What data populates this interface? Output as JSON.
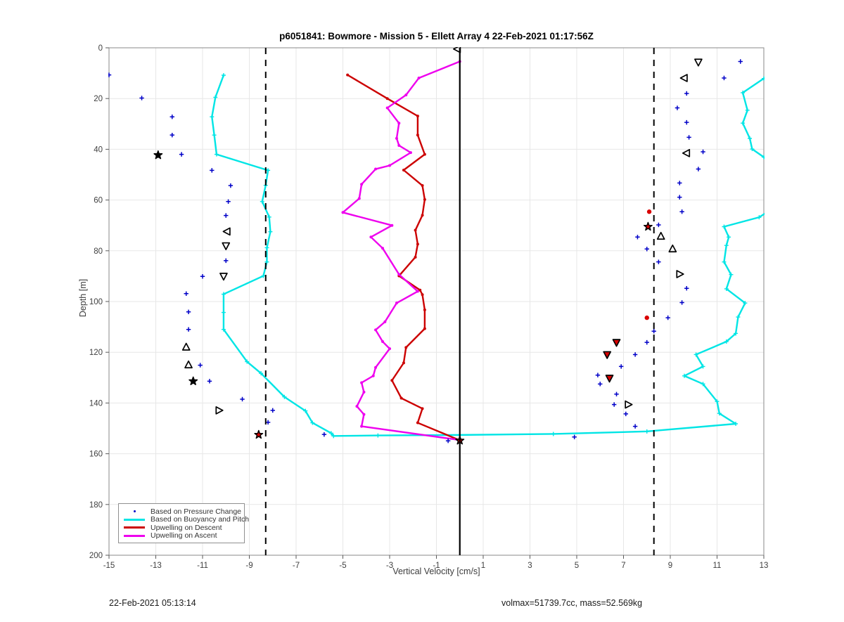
{
  "title": "p6051841: Bowmore - Mission 5 - Ellett Array 4 22-Feb-2021 01:17:56Z",
  "footer": {
    "timestamp": "22-Feb-2021 05:13:14",
    "info": "volmax=51739.7cc, mass=52.569kg"
  },
  "colors": {
    "pressure": "#0000C8",
    "buoyancy": "#00E5E5",
    "descent": "#CC0000",
    "ascent": "#EE00EE",
    "grid": "#E7E7E7",
    "axis_box": "#8A8A8A",
    "tick": "#5A5A5A",
    "tick_label": "#3F3F3F",
    "reference": "#000000",
    "red_dot": "#D90000",
    "marker_stroke": "#000000"
  },
  "axes": {
    "xlabel": "Vertical Velocity [cm/s]",
    "ylabel": "Depth [m]",
    "xlim": [
      -15,
      13
    ],
    "ylim": [
      0,
      200
    ],
    "y_inverted": true,
    "xticks": [
      -15,
      -13,
      -11,
      -9,
      -7,
      -5,
      -3,
      -1,
      1,
      3,
      5,
      7,
      9,
      11,
      13
    ],
    "yticks": [
      0,
      20,
      40,
      60,
      80,
      100,
      120,
      140,
      160,
      180,
      200
    ]
  },
  "chart_data": {
    "type": "line",
    "title": "p6051841: Bowmore - Mission 5 - Ellett Array 4 22-Feb-2021 01:17:56Z",
    "xlabel": "Vertical Velocity [cm/s]",
    "ylabel": "Depth [m]",
    "xlim": [
      -15,
      13
    ],
    "ylim": [
      0,
      200
    ],
    "y_inverted": true,
    "grid": true,
    "legend_position": "southwest",
    "zero_line": 0,
    "dashed_lines": [
      -8.3,
      8.3
    ],
    "series": [
      {
        "name": "Based on Pressure Change",
        "style": "scatter-plus",
        "color": "#0000C8",
        "points": [
          [
            -15.0,
            10.7
          ],
          [
            -13.6,
            19.8
          ],
          [
            -12.3,
            27.2
          ],
          [
            -12.3,
            34.4
          ],
          [
            -11.9,
            42.0
          ],
          [
            -10.6,
            48.3
          ],
          [
            -9.8,
            54.3
          ],
          [
            -9.9,
            60.6
          ],
          [
            -10.0,
            66.1
          ],
          [
            -10.0,
            83.9
          ],
          [
            -11.0,
            90.1
          ],
          [
            -11.7,
            96.9
          ],
          [
            -11.6,
            104.1
          ],
          [
            -11.6,
            111.0
          ],
          [
            -11.1,
            125.1
          ],
          [
            -10.7,
            131.4
          ],
          [
            -9.3,
            138.5
          ],
          [
            -8.0,
            142.9
          ],
          [
            -8.2,
            147.6
          ],
          [
            -5.8,
            152.4
          ],
          [
            -0.5,
            154.9
          ],
          [
            4.9,
            153.4
          ],
          [
            7.5,
            149.2
          ],
          [
            7.1,
            144.3
          ],
          [
            6.6,
            140.6
          ],
          [
            6.7,
            136.5
          ],
          [
            6.0,
            132.5
          ],
          [
            5.9,
            129.0
          ],
          [
            6.9,
            125.6
          ],
          [
            7.5,
            120.9
          ],
          [
            8.0,
            116.1
          ],
          [
            8.3,
            111.7
          ],
          [
            8.9,
            106.4
          ],
          [
            9.5,
            100.4
          ],
          [
            9.7,
            94.8
          ],
          [
            8.5,
            84.4
          ],
          [
            8.0,
            79.3
          ],
          [
            7.6,
            74.6
          ],
          [
            8.5,
            69.8
          ],
          [
            9.5,
            64.6
          ],
          [
            9.4,
            58.9
          ],
          [
            9.4,
            53.3
          ],
          [
            10.2,
            47.8
          ],
          [
            10.4,
            41.0
          ],
          [
            9.8,
            35.3
          ],
          [
            9.7,
            29.4
          ],
          [
            9.3,
            23.7
          ],
          [
            9.7,
            18.0
          ],
          [
            11.3,
            11.9
          ],
          [
            12.0,
            5.4
          ]
        ]
      },
      {
        "name": "Based on Buoyancy and Pitch",
        "style": "line-plus",
        "color": "#00E5E5",
        "points": [
          [
            -10.1,
            10.8
          ],
          [
            -10.45,
            19.5
          ],
          [
            -10.6,
            27.2
          ],
          [
            -10.5,
            34.4
          ],
          [
            -10.4,
            42.0
          ],
          [
            -8.2,
            48.3
          ],
          [
            -8.3,
            54.2
          ],
          [
            -8.45,
            60.6
          ],
          [
            -8.15,
            66.7
          ],
          [
            -8.1,
            72.5
          ],
          [
            -8.25,
            78.8
          ],
          [
            -8.25,
            84.4
          ],
          [
            -8.4,
            89.9
          ],
          [
            -10.1,
            97.1
          ],
          [
            -10.1,
            104.3
          ],
          [
            -10.1,
            111.0
          ],
          [
            -9.1,
            123.7
          ],
          [
            -8.5,
            128.3
          ],
          [
            -7.5,
            137.6
          ],
          [
            -6.6,
            143.1
          ],
          [
            -6.3,
            147.8
          ],
          [
            -5.5,
            151.9
          ],
          [
            -5.4,
            153.0
          ],
          [
            -3.5,
            152.8
          ],
          [
            0.0,
            152.6
          ],
          [
            4.0,
            152.2
          ],
          [
            8.0,
            151.2
          ],
          [
            11.8,
            148.2
          ],
          [
            11.1,
            144.1
          ],
          [
            11.0,
            139.4
          ],
          [
            10.4,
            132.5
          ],
          [
            9.6,
            129.3
          ],
          [
            10.4,
            125.6
          ],
          [
            10.1,
            120.9
          ],
          [
            11.4,
            115.8
          ],
          [
            11.8,
            112.6
          ],
          [
            11.9,
            106.1
          ],
          [
            12.2,
            100.6
          ],
          [
            11.4,
            95.0
          ],
          [
            11.6,
            89.4
          ],
          [
            11.3,
            84.4
          ],
          [
            11.4,
            77.9
          ],
          [
            11.5,
            74.6
          ],
          [
            11.3,
            70.5
          ],
          [
            12.8,
            66.8
          ],
          [
            13.6,
            62.0
          ],
          [
            13.6,
            47.0
          ],
          [
            13.0,
            43.1
          ],
          [
            12.5,
            39.9
          ],
          [
            12.4,
            35.7
          ],
          [
            12.1,
            29.7
          ],
          [
            12.3,
            24.6
          ],
          [
            12.1,
            17.7
          ],
          [
            13.0,
            12.1
          ],
          [
            13.6,
            10.5
          ]
        ]
      },
      {
        "name": "Upwelling on Descent",
        "style": "line-dot",
        "color": "#CC0000",
        "points": [
          [
            -4.8,
            10.7
          ],
          [
            -3.1,
            20.0
          ],
          [
            -1.8,
            26.9
          ],
          [
            -1.8,
            34.4
          ],
          [
            -1.5,
            42.0
          ],
          [
            -2.4,
            48.2
          ],
          [
            -1.6,
            54.3
          ],
          [
            -1.5,
            59.8
          ],
          [
            -1.6,
            66.0
          ],
          [
            -1.9,
            71.9
          ],
          [
            -1.8,
            77.4
          ],
          [
            -1.9,
            82.5
          ],
          [
            -2.6,
            89.9
          ],
          [
            -1.7,
            95.5
          ],
          [
            -1.6,
            97.3
          ],
          [
            -1.5,
            103.3
          ],
          [
            -1.5,
            110.7
          ],
          [
            -2.3,
            118.1
          ],
          [
            -2.4,
            124.2
          ],
          [
            -2.9,
            131.1
          ],
          [
            -2.5,
            138.1
          ],
          [
            -1.6,
            142.2
          ],
          [
            -1.8,
            147.8
          ],
          [
            0.0,
            154.7
          ]
        ]
      },
      {
        "name": "Upwelling on Ascent",
        "style": "line-dot",
        "color": "#EE00EE",
        "points": [
          [
            0.0,
            5.4
          ],
          [
            -1.75,
            11.9
          ],
          [
            -2.3,
            18.6
          ],
          [
            -3.1,
            23.7
          ],
          [
            -2.6,
            29.7
          ],
          [
            -2.7,
            35.7
          ],
          [
            -2.6,
            38.5
          ],
          [
            -2.1,
            41.3
          ],
          [
            -3.0,
            46.4
          ],
          [
            -3.6,
            47.8
          ],
          [
            -4.2,
            53.8
          ],
          [
            -4.3,
            59.4
          ],
          [
            -5.0,
            64.9
          ],
          [
            -2.9,
            70.0
          ],
          [
            -3.8,
            74.6
          ],
          [
            -3.3,
            79.0
          ],
          [
            -2.6,
            89.3
          ],
          [
            -1.8,
            96.0
          ],
          [
            -2.7,
            100.6
          ],
          [
            -3.2,
            108.0
          ],
          [
            -3.6,
            111.2
          ],
          [
            -3.3,
            115.8
          ],
          [
            -3.0,
            118.6
          ],
          [
            -3.6,
            126.0
          ],
          [
            -3.7,
            129.3
          ],
          [
            -4.2,
            132.0
          ],
          [
            -4.1,
            135.7
          ],
          [
            -4.4,
            141.3
          ],
          [
            -4.1,
            144.5
          ],
          [
            -4.2,
            149.2
          ],
          [
            0.0,
            154.6
          ]
        ]
      }
    ],
    "attitude_markers": [
      {
        "shape": "pentagram",
        "fill": "black",
        "v": -12.9,
        "d": 42.3
      },
      {
        "shape": "tri-left",
        "fill": "none",
        "v": -9.95,
        "d": 72.4
      },
      {
        "shape": "tri-down",
        "fill": "none",
        "v": -10.0,
        "d": 78.0
      },
      {
        "shape": "tri-down",
        "fill": "none",
        "v": -10.1,
        "d": 90.0
      },
      {
        "shape": "tri-up",
        "fill": "none",
        "v": -11.7,
        "d": 118.0
      },
      {
        "shape": "tri-up",
        "fill": "none",
        "v": -11.6,
        "d": 125.0
      },
      {
        "shape": "pentagram",
        "fill": "black",
        "v": -11.4,
        "d": 131.4
      },
      {
        "shape": "tri-right",
        "fill": "none",
        "v": -10.3,
        "d": 142.9
      },
      {
        "shape": "pentagram",
        "fill": "red",
        "v": -8.6,
        "d": 152.5
      },
      {
        "shape": "tri-left",
        "fill": "none",
        "v": -0.1,
        "d": 0.5
      },
      {
        "shape": "pentagram",
        "fill": "red",
        "v": 0.0,
        "d": 154.8
      },
      {
        "shape": "tri-down",
        "fill": "none",
        "v": 10.2,
        "d": 5.6
      },
      {
        "shape": "tri-left",
        "fill": "none",
        "v": 9.6,
        "d": 11.9
      },
      {
        "shape": "tri-left",
        "fill": "none",
        "v": 9.7,
        "d": 41.5
      },
      {
        "shape": "pentagram",
        "fill": "red",
        "v": 8.05,
        "d": 70.5
      },
      {
        "shape": "tri-up",
        "fill": "none",
        "v": 8.6,
        "d": 74.3
      },
      {
        "shape": "tri-up",
        "fill": "none",
        "v": 9.1,
        "d": 79.3
      },
      {
        "shape": "tri-right",
        "fill": "none",
        "v": 9.4,
        "d": 89.2
      },
      {
        "shape": "tri-down",
        "fill": "red",
        "v": 6.7,
        "d": 116.1
      },
      {
        "shape": "tri-down",
        "fill": "red",
        "v": 6.3,
        "d": 120.9
      },
      {
        "shape": "tri-down",
        "fill": "red",
        "v": 6.4,
        "d": 130.2
      },
      {
        "shape": "tri-right",
        "fill": "none",
        "v": 7.2,
        "d": 140.6
      }
    ],
    "red_dots": [
      [
        8.1,
        64.6
      ],
      [
        8.0,
        106.4
      ]
    ]
  }
}
